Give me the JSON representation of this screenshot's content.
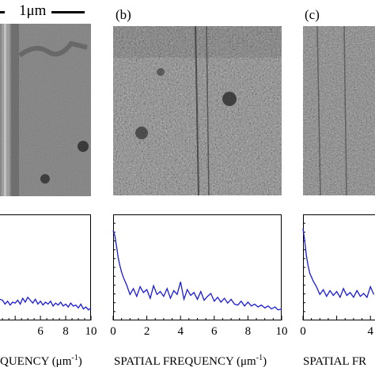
{
  "figure": {
    "scale_bar_label": "1μm",
    "panels": [
      {
        "id": "a",
        "label": ""
      },
      {
        "id": "b",
        "label": "(b)"
      },
      {
        "id": "c",
        "label": "(c)"
      }
    ],
    "xlabels": [
      {
        "text": "QUENCY (μm",
        "sup": "-1",
        "suffix": ")"
      },
      {
        "text": "SPATIAL FREQUENCY (μm",
        "sup": "-1",
        "suffix": ")"
      },
      {
        "text": "SPATIAL FR",
        "sup": "",
        "suffix": ""
      }
    ],
    "line_color": "#1a1ad6"
  },
  "chart_data": [
    {
      "type": "line",
      "panel": "a",
      "xlim": [
        2.8,
        10
      ],
      "ylim": [
        0,
        1
      ],
      "tick_labels": [
        "6",
        "8",
        "10"
      ],
      "tick_values": [
        6,
        8,
        10
      ],
      "x": [
        2.8,
        3.0,
        3.2,
        3.4,
        3.6,
        3.8,
        4.0,
        4.2,
        4.4,
        4.6,
        4.8,
        5.0,
        5.2,
        5.4,
        5.6,
        5.8,
        6.0,
        6.2,
        6.4,
        6.6,
        6.8,
        7.0,
        7.2,
        7.4,
        7.6,
        7.8,
        8.0,
        8.2,
        8.4,
        8.6,
        8.8,
        9.0,
        9.2,
        9.4,
        9.6,
        9.8,
        10.0
      ],
      "y": [
        0.17,
        0.16,
        0.12,
        0.15,
        0.11,
        0.14,
        0.13,
        0.16,
        0.12,
        0.18,
        0.14,
        0.19,
        0.16,
        0.13,
        0.17,
        0.12,
        0.15,
        0.11,
        0.14,
        0.12,
        0.15,
        0.1,
        0.13,
        0.11,
        0.14,
        0.1,
        0.12,
        0.09,
        0.13,
        0.1,
        0.11,
        0.08,
        0.12,
        0.07,
        0.09,
        0.06,
        0.08
      ]
    },
    {
      "type": "line",
      "panel": "b",
      "xlim": [
        0,
        10
      ],
      "ylim": [
        0,
        1
      ],
      "tick_labels": [
        "0",
        "2",
        "4",
        "6",
        "8",
        "10"
      ],
      "tick_values": [
        0,
        2,
        4,
        6,
        8,
        10
      ],
      "x": [
        0.0,
        0.1,
        0.2,
        0.3,
        0.4,
        0.5,
        0.6,
        0.7,
        0.8,
        1.0,
        1.2,
        1.4,
        1.6,
        1.8,
        2.0,
        2.2,
        2.4,
        2.6,
        2.8,
        3.0,
        3.2,
        3.4,
        3.6,
        3.8,
        4.0,
        4.2,
        4.4,
        4.6,
        4.8,
        5.0,
        5.2,
        5.4,
        5.6,
        5.8,
        6.0,
        6.2,
        6.4,
        6.6,
        6.8,
        7.0,
        7.2,
        7.4,
        7.6,
        7.8,
        8.0,
        8.2,
        8.4,
        8.6,
        8.8,
        9.0,
        9.2,
        9.4,
        9.6,
        9.8,
        10.0
      ],
      "y": [
        0.88,
        0.83,
        0.72,
        0.6,
        0.52,
        0.45,
        0.4,
        0.36,
        0.32,
        0.22,
        0.28,
        0.2,
        0.3,
        0.24,
        0.27,
        0.18,
        0.31,
        0.22,
        0.25,
        0.2,
        0.28,
        0.18,
        0.26,
        0.22,
        0.35,
        0.17,
        0.27,
        0.21,
        0.24,
        0.17,
        0.25,
        0.16,
        0.2,
        0.23,
        0.15,
        0.19,
        0.14,
        0.18,
        0.13,
        0.17,
        0.12,
        0.11,
        0.15,
        0.1,
        0.14,
        0.1,
        0.12,
        0.09,
        0.11,
        0.08,
        0.1,
        0.07,
        0.09,
        0.06,
        0.07
      ]
    },
    {
      "type": "line",
      "panel": "c",
      "xlim": [
        0,
        10
      ],
      "ylim": [
        0,
        1
      ],
      "tick_labels": [
        "0",
        "4"
      ],
      "tick_values": [
        0,
        4
      ],
      "x": [
        0.0,
        0.1,
        0.2,
        0.3,
        0.4,
        0.5,
        0.6,
        0.7,
        0.8,
        1.0,
        1.2,
        1.4,
        1.6,
        1.8,
        2.0,
        2.2,
        2.4,
        2.6,
        2.8,
        3.0,
        3.2,
        3.4,
        3.6,
        3.8,
        4.0,
        4.2
      ],
      "y": [
        0.9,
        0.78,
        0.62,
        0.52,
        0.44,
        0.4,
        0.36,
        0.33,
        0.3,
        0.22,
        0.27,
        0.2,
        0.26,
        0.21,
        0.25,
        0.19,
        0.28,
        0.21,
        0.24,
        0.19,
        0.26,
        0.2,
        0.23,
        0.19,
        0.3,
        0.22
      ]
    }
  ]
}
